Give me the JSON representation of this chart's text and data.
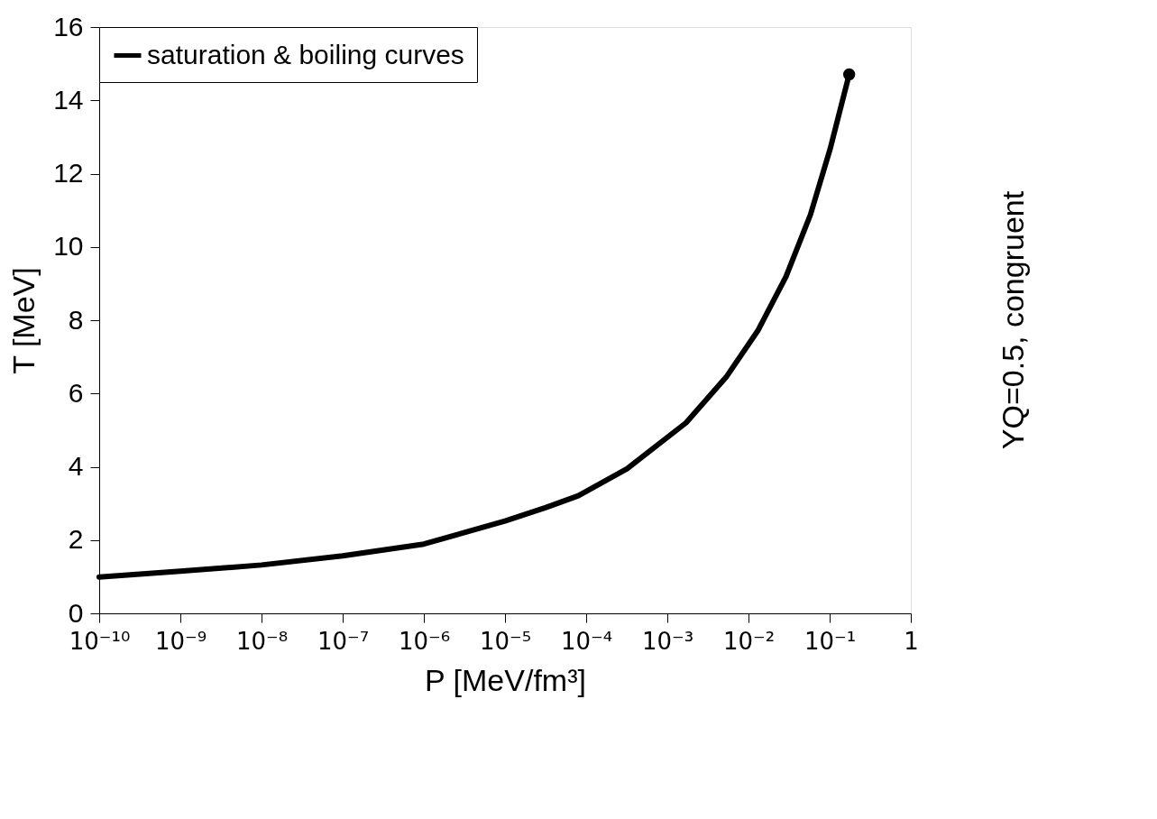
{
  "chart_data": {
    "type": "line",
    "xlabel": "P [MeV/fm³]",
    "ylabel": "T [MeV]",
    "log": "x",
    "xlim": [
      1e-10,
      1
    ],
    "xticks": [
      {
        "value": 1e-10,
        "label": "10⁻¹⁰"
      },
      {
        "value": 1e-09,
        "label": "10⁻⁹"
      },
      {
        "value": 1e-08,
        "label": "10⁻⁸"
      },
      {
        "value": 1e-07,
        "label": "10⁻⁷"
      },
      {
        "value": 1e-06,
        "label": "10⁻⁶"
      },
      {
        "value": 1e-05,
        "label": "10⁻⁵"
      },
      {
        "value": 0.0001,
        "label": "10⁻⁴"
      },
      {
        "value": 0.001,
        "label": "10⁻³"
      },
      {
        "value": 0.01,
        "label": "10⁻²"
      },
      {
        "value": 0.1,
        "label": "10⁻¹"
      },
      1
    ],
    "ylim": [
      0,
      16
    ],
    "yticks": [
      0,
      2,
      4,
      6,
      8,
      10,
      12,
      14,
      16
    ],
    "grid": false,
    "legend": "top left",
    "line_style": "solid",
    "annotations": [
      "YQ=0.5, congruent"
    ],
    "series": [
      {
        "name": "saturation & boiling curves",
        "color": "#000000",
        "marker": "none",
        "x": [
          1e-10,
          1e-09,
          1e-08,
          1e-07,
          1e-06,
          1e-05,
          3.2e-05,
          8e-05,
          0.00032,
          0.0017,
          0.0054,
          0.013,
          0.029,
          0.058,
          0.101,
          0.174
        ],
        "values": [
          0.99,
          1.15,
          1.32,
          1.57,
          1.89,
          2.52,
          2.89,
          3.21,
          3.95,
          5.2,
          6.47,
          7.71,
          9.19,
          10.88,
          12.66,
          14.71
        ]
      },
      {
        "color": "#000000",
        "type": "scatter",
        "marker": "circle",
        "x": [
          0.174
        ],
        "values": [
          14.71
        ]
      }
    ]
  }
}
